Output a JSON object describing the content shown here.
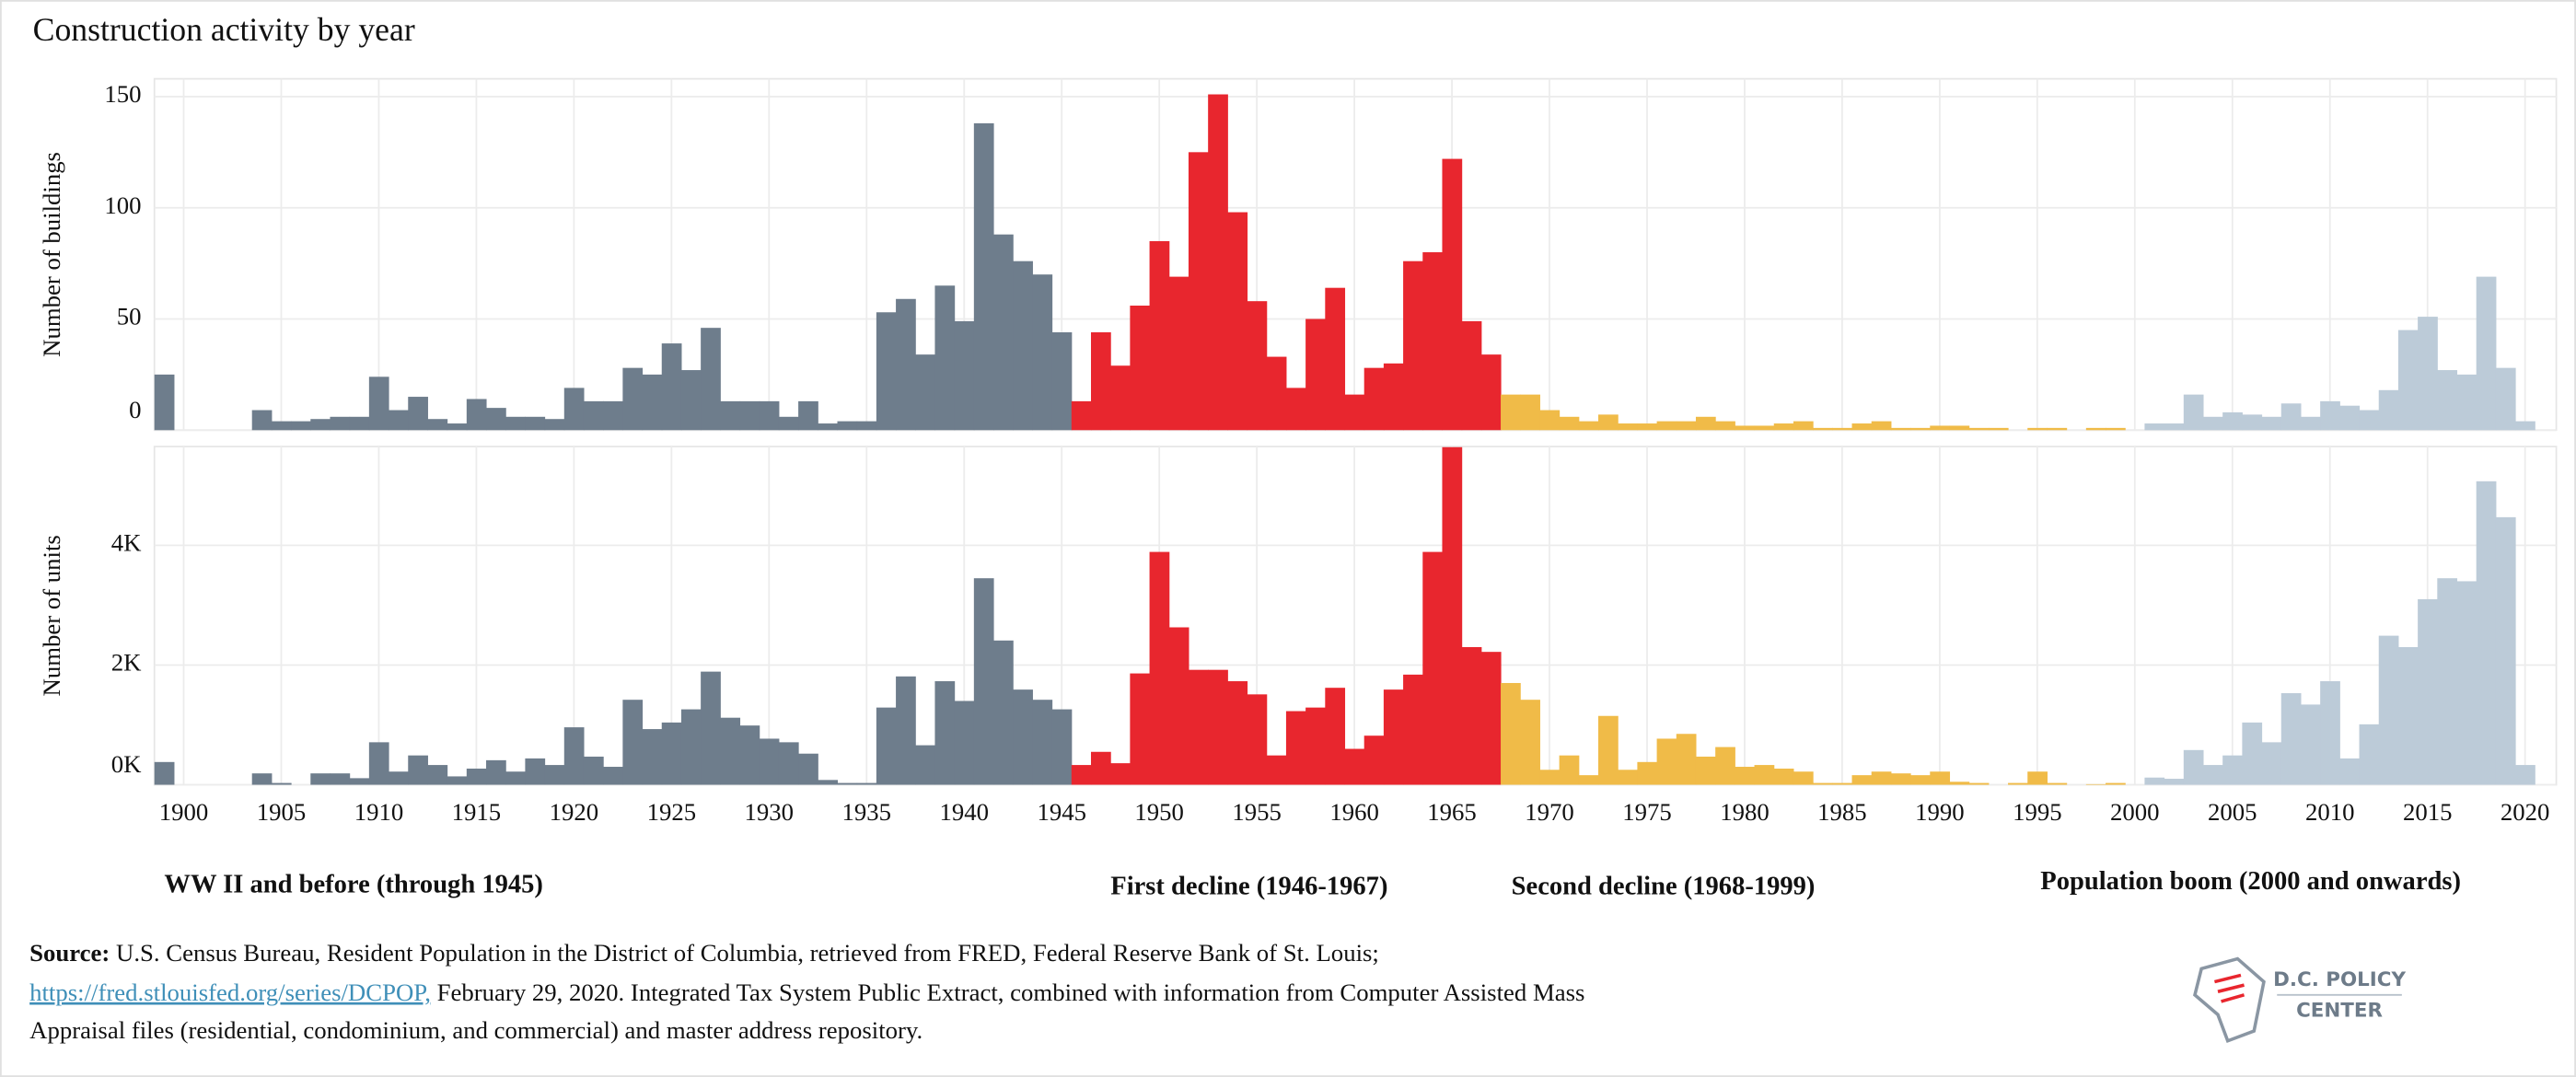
{
  "title": "Construction activity by year",
  "chart_data": [
    {
      "type": "bar",
      "ylabel": "Number of buildings",
      "xlim": [
        1898.5,
        2021.6
      ],
      "ylim": [
        0,
        158
      ],
      "yticks": [
        0,
        50,
        100,
        150
      ],
      "xticks": [
        1900,
        1905,
        1910,
        1915,
        1920,
        1925,
        1930,
        1935,
        1940,
        1945,
        1950,
        1955,
        1960,
        1965,
        1970,
        1975,
        1980,
        1985,
        1990,
        1995,
        2000,
        2005,
        2010,
        2015,
        2020
      ],
      "grid": true,
      "series": [
        {
          "name": "WW II and before (through 1945)",
          "color": "#6e7d8c",
          "x": [
            1899,
            1900,
            1901,
            1902,
            1903,
            1904,
            1905,
            1906,
            1907,
            1908,
            1909,
            1910,
            1911,
            1912,
            1913,
            1914,
            1915,
            1916,
            1917,
            1918,
            1919,
            1920,
            1921,
            1922,
            1923,
            1924,
            1925,
            1926,
            1927,
            1928,
            1929,
            1930,
            1931,
            1932,
            1933,
            1934,
            1935,
            1936,
            1937,
            1938,
            1939,
            1940,
            1941,
            1942,
            1943,
            1944,
            1945
          ],
          "values": [
            25,
            0,
            0,
            0,
            0,
            9,
            4,
            4,
            5,
            6,
            6,
            24,
            9,
            15,
            5,
            3,
            14,
            10,
            6,
            6,
            5,
            19,
            13,
            13,
            28,
            25,
            39,
            27,
            46,
            13,
            13,
            13,
            6,
            13,
            3,
            4,
            4,
            53,
            59,
            34,
            65,
            49,
            138,
            88,
            76,
            70,
            44
          ]
        },
        {
          "name": "First decline (1946-1967)",
          "color": "#e8262e",
          "x": [
            1946,
            1947,
            1948,
            1949,
            1950,
            1951,
            1952,
            1953,
            1954,
            1955,
            1956,
            1957,
            1958,
            1959,
            1960,
            1961,
            1962,
            1963,
            1964,
            1965,
            1966,
            1967
          ],
          "values": [
            13,
            44,
            29,
            56,
            85,
            69,
            125,
            151,
            98,
            58,
            33,
            19,
            50,
            64,
            16,
            28,
            30,
            76,
            80,
            122,
            49,
            34
          ]
        },
        {
          "name": "Second decline (1968-1999)",
          "color": "#f0bb48",
          "x": [
            1968,
            1969,
            1970,
            1971,
            1972,
            1973,
            1974,
            1975,
            1976,
            1977,
            1978,
            1979,
            1980,
            1981,
            1982,
            1983,
            1984,
            1985,
            1986,
            1987,
            1988,
            1989,
            1990,
            1991,
            1992,
            1993,
            1994,
            1995,
            1996,
            1997,
            1998,
            1999
          ],
          "values": [
            16,
            16,
            9,
            6,
            4,
            7,
            3,
            3,
            4,
            4,
            6,
            4,
            2,
            2,
            3,
            4,
            1,
            1,
            3,
            4,
            1,
            1,
            2,
            2,
            1,
            1,
            0,
            1,
            1,
            0,
            1,
            1
          ]
        },
        {
          "name": "Population boom (2000 and onwards)",
          "color": "#bccbd8",
          "x": [
            2001,
            2002,
            2003,
            2004,
            2005,
            2006,
            2007,
            2008,
            2009,
            2010,
            2011,
            2012,
            2013,
            2014,
            2015,
            2016,
            2017,
            2018,
            2019,
            2020
          ],
          "values": [
            3,
            3,
            16,
            6,
            8,
            7,
            6,
            12,
            6,
            13,
            11,
            9,
            18,
            45,
            51,
            27,
            25,
            69,
            28,
            4
          ]
        }
      ]
    },
    {
      "type": "bar",
      "ylabel": "Number of units",
      "xlim": [
        1898.5,
        2021.6
      ],
      "ylim": [
        0,
        5650
      ],
      "yticks": [
        {
          "value": 0,
          "label": "0K"
        },
        {
          "value": 2000,
          "label": "2K"
        },
        {
          "value": 4000,
          "label": "4K"
        }
      ],
      "xticks": [
        1900,
        1905,
        1910,
        1915,
        1920,
        1925,
        1930,
        1935,
        1940,
        1945,
        1950,
        1955,
        1960,
        1965,
        1970,
        1975,
        1980,
        1985,
        1990,
        1995,
        2000,
        2005,
        2010,
        2015,
        2020
      ],
      "grid": true,
      "series": [
        {
          "color": "#6e7d8c",
          "x": [
            1899,
            1900,
            1901,
            1902,
            1903,
            1904,
            1905,
            1906,
            1907,
            1908,
            1909,
            1910,
            1911,
            1912,
            1913,
            1914,
            1915,
            1916,
            1917,
            1918,
            1919,
            1920,
            1921,
            1922,
            1923,
            1924,
            1925,
            1926,
            1927,
            1928,
            1929,
            1930,
            1931,
            1932,
            1933,
            1934,
            1935,
            1936,
            1937,
            1938,
            1939,
            1940,
            1941,
            1942,
            1943,
            1944,
            1945
          ],
          "values": [
            380,
            0,
            0,
            0,
            0,
            190,
            30,
            0,
            190,
            190,
            110,
            710,
            220,
            490,
            330,
            140,
            270,
            410,
            220,
            440,
            330,
            960,
            470,
            300,
            1420,
            930,
            1040,
            1260,
            1890,
            1120,
            990,
            770,
            710,
            520,
            80,
            30,
            30,
            1290,
            1810,
            660,
            1730,
            1400,
            3450,
            2410,
            1590,
            1420,
            1260
          ]
        },
        {
          "color": "#e8262e",
          "x": [
            1946,
            1947,
            1948,
            1949,
            1950,
            1951,
            1952,
            1953,
            1954,
            1955,
            1956,
            1957,
            1958,
            1959,
            1960,
            1961,
            1962,
            1963,
            1964,
            1965,
            1966,
            1967
          ],
          "values": [
            330,
            550,
            360,
            1860,
            3890,
            2630,
            1920,
            1920,
            1730,
            1510,
            490,
            1230,
            1290,
            1620,
            600,
            820,
            1590,
            1840,
            3890,
            5640,
            2300,
            2220
          ]
        },
        {
          "color": "#f0bb48",
          "x": [
            1968,
            1969,
            1970,
            1971,
            1972,
            1973,
            1974,
            1975,
            1976,
            1977,
            1978,
            1979,
            1980,
            1981,
            1982,
            1983,
            1984,
            1985,
            1986,
            1987,
            1988,
            1989,
            1990,
            1991,
            1992,
            1993,
            1994,
            1995,
            1996,
            1997,
            1998,
            1999
          ],
          "values": [
            1700,
            1420,
            250,
            490,
            160,
            1150,
            250,
            380,
            770,
            850,
            470,
            630,
            300,
            330,
            270,
            220,
            30,
            30,
            160,
            220,
            190,
            160,
            220,
            50,
            30,
            0,
            30,
            220,
            30,
            0,
            10,
            30
          ]
        },
        {
          "color": "#bccbd8",
          "x": [
            2001,
            2002,
            2003,
            2004,
            2005,
            2006,
            2007,
            2008,
            2009,
            2010,
            2011,
            2012,
            2013,
            2014,
            2015,
            2016,
            2017,
            2018,
            2019,
            2020
          ],
          "values": [
            120,
            100,
            580,
            330,
            490,
            1040,
            710,
            1530,
            1340,
            1730,
            440,
            1010,
            2490,
            2300,
            3100,
            3450,
            3400,
            5070,
            4470,
            330
          ]
        }
      ]
    }
  ],
  "source": {
    "label": "Source:",
    "line1": "U.S. Census Bureau, Resident Population in the District of Columbia, retrieved from FRED, Federal Reserve Bank of St. Louis;",
    "link": "https://fred.stlouisfed.org/series/DCPOP,",
    "line2": "February 29, 2020. Integrated Tax System Public Extract, combined with information from Computer Assisted Mass",
    "line3": "Appraisal files (residential, condominium, and commercial) and master address repository."
  },
  "logo": {
    "line1": "D.C. POLICY",
    "line2": "CENTER"
  }
}
